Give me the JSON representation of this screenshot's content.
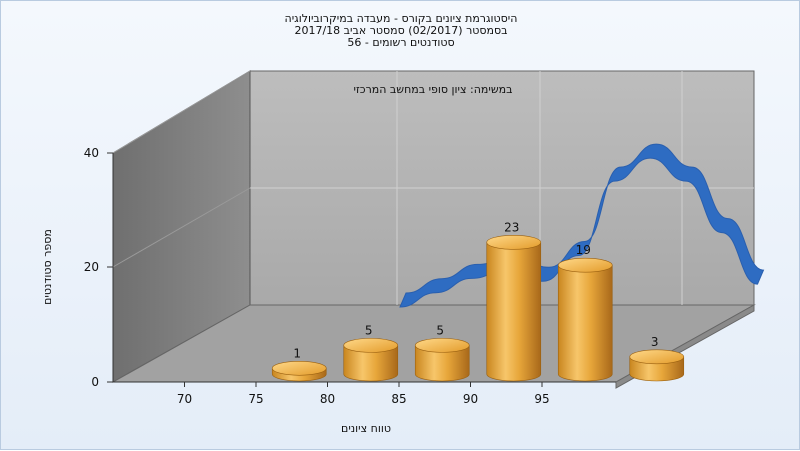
{
  "chart_data": {
    "type": "bar",
    "title_lines": [
      "היסטוגרמת ציונים בקורס - מעבדה במיקרוביולוגיה",
      "בסמסטר  (02/2017)  סמסטר אביב 2017/18",
      "סטודנטים רשומים - 56"
    ],
    "annotation": "במשימה: ציון סופי במחשב המרכזי",
    "xlabel": "טווח ציונים",
    "ylabel": "מספר סטודנטים",
    "x_ticks": [
      "70",
      "75",
      "80",
      "85",
      "90",
      "95"
    ],
    "y_ticks": [
      0,
      20,
      40
    ],
    "ylim": [
      0,
      40
    ],
    "bars": [
      {
        "center": 72.5,
        "value": 1,
        "label": "1"
      },
      {
        "center": 77.5,
        "value": 5,
        "label": "5"
      },
      {
        "center": 82.5,
        "value": 5,
        "label": "5"
      },
      {
        "center": 87.5,
        "value": 23,
        "label": "23"
      },
      {
        "center": 92.5,
        "value": 19,
        "label": "19"
      },
      {
        "center": 97.5,
        "value": 3,
        "label": "3"
      }
    ],
    "curve": {
      "x": [
        75,
        77.5,
        80,
        82.5,
        85,
        87.5,
        90,
        92.5,
        95,
        97.5,
        100
      ],
      "y": [
        11,
        13.5,
        16,
        17.5,
        15.5,
        20,
        33,
        37,
        33,
        24,
        15
      ]
    },
    "colors": {
      "bar": "#e5a535",
      "curve": "#2e6cc2",
      "wall": "#b5b5b5",
      "side_wall": "#7c7c7c",
      "floor": "#9e9e9e"
    }
  }
}
